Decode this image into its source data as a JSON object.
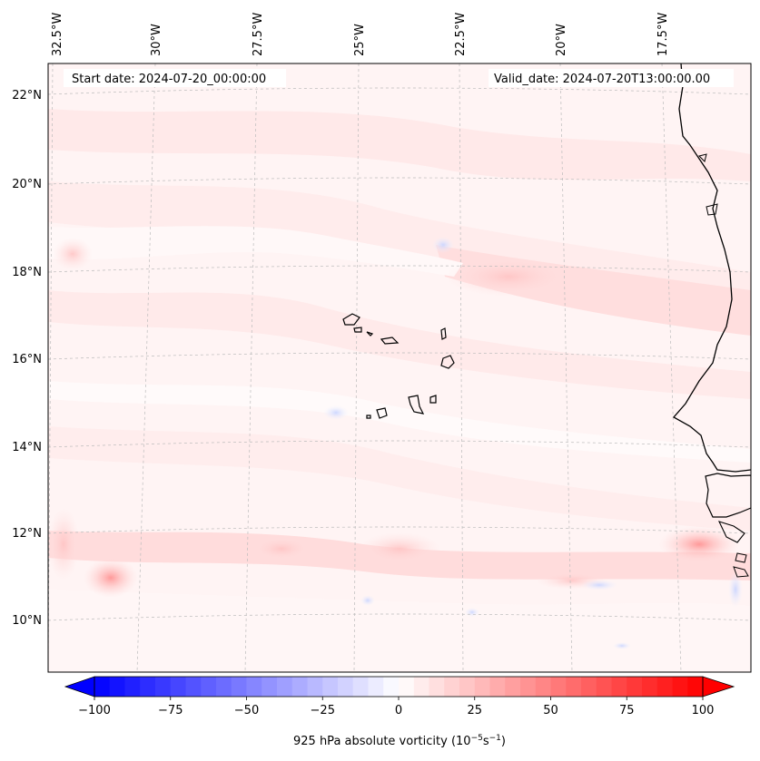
{
  "header": {
    "start_date": "Start date: 2024-07-20_00:00:00",
    "valid_date": "Valid_date: 2024-07-20T13:00:00.00"
  },
  "map": {
    "lon_labels": [
      "32.5°W",
      "30°W",
      "27.5°W",
      "25°W",
      "22.5°W",
      "20°W",
      "17.5°W"
    ],
    "lat_labels": [
      "22°N",
      "20°N",
      "18°N",
      "16°N",
      "14°N",
      "12°N",
      "10°N"
    ],
    "coast_color": "#000000",
    "grid_color": "#bbbbbb"
  },
  "colorbar": {
    "ticks": [
      "−100",
      "−75",
      "−50",
      "−25",
      "0",
      "25",
      "50",
      "75",
      "100"
    ],
    "label": "925 hPa absolute vorticity (10",
    "label_exp1": "−5",
    "label_mid": "s",
    "label_exp2": "−1",
    "label_end": ")",
    "min_color": "#0000ff",
    "max_color": "#ff0000"
  }
}
